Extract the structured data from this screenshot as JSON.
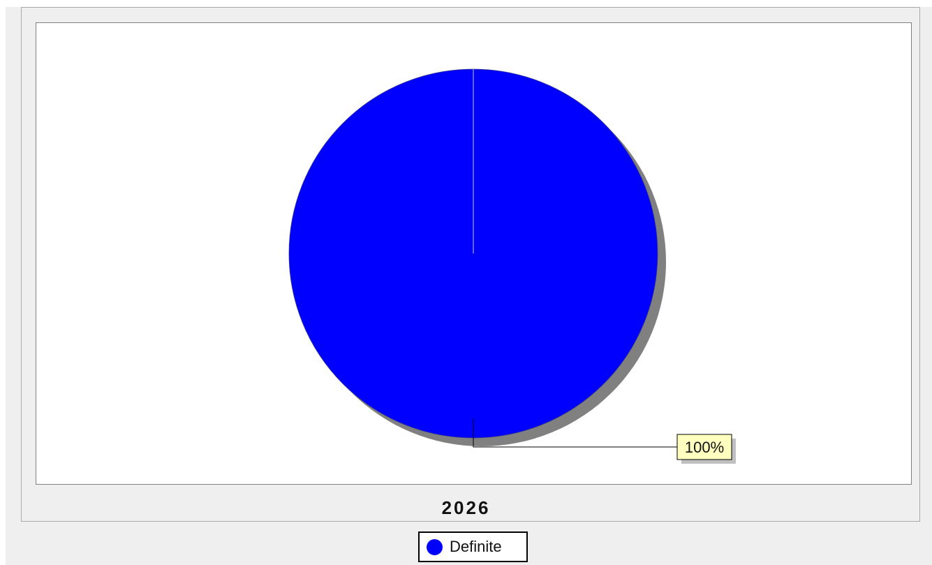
{
  "chart_data": {
    "type": "pie",
    "title": "2026",
    "slices": [
      {
        "label": "Definite",
        "value": 100,
        "percent_label": "100%",
        "color": "#0000ff"
      }
    ],
    "legend": {
      "placement": "bottom",
      "entries": [
        "Definite"
      ]
    },
    "data_label_style": {
      "background": "#ffffc0",
      "shadow": "#c0c0c0"
    },
    "shadow_color": "#808080"
  },
  "legend": {
    "items": [
      {
        "label": "Definite",
        "color": "#0000ff"
      }
    ]
  }
}
